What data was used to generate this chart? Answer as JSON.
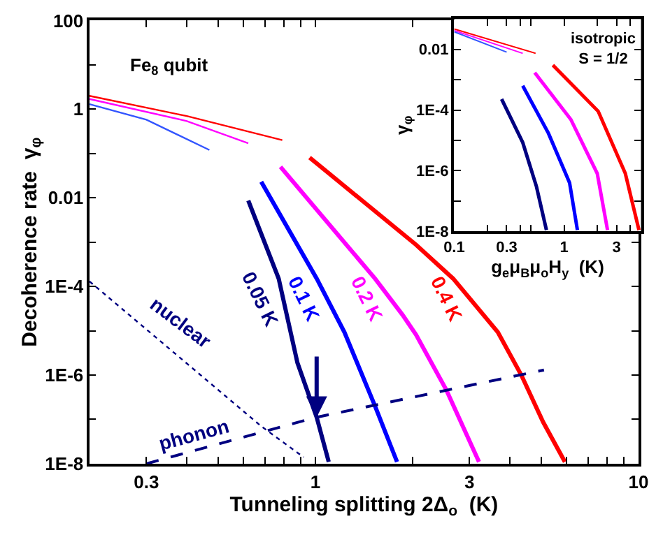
{
  "chart_data": [
    {
      "type": "line",
      "xlabel": "Tunneling splitting 2Δ$_{o}$  (K)",
      "ylabel": "Decoherence rate  γ$_{φ}$",
      "log": "xy",
      "xlim": [
        0.2,
        10
      ],
      "ylim": [
        1e-08,
        100
      ],
      "xticks": [
        0.3,
        {
          "value": 0.4,
          "label": null
        },
        {
          "value": 0.5,
          "label": null
        },
        {
          "value": 0.6,
          "label": null
        },
        {
          "value": 0.7,
          "label": null
        },
        {
          "value": 0.8,
          "label": null
        },
        {
          "value": 0.9,
          "label": null
        },
        1,
        {
          "value": 2,
          "label": null
        },
        3,
        {
          "value": 4,
          "label": null
        },
        {
          "value": 5,
          "label": null
        },
        {
          "value": 6,
          "label": null
        },
        {
          "value": 7,
          "label": null
        },
        {
          "value": 8,
          "label": null
        },
        {
          "value": 9,
          "label": null
        },
        10
      ],
      "yticks": [
        {
          "value": 1e-08,
          "label": "1E-8"
        },
        {
          "value": 1e-07,
          "label": null
        },
        {
          "value": 1e-06,
          "label": "1E-6"
        },
        {
          "value": 1e-05,
          "label": null
        },
        {
          "value": 0.0001,
          "label": "1E-4"
        },
        {
          "value": 0.001,
          "label": null
        },
        0.01,
        {
          "value": 0.1,
          "label": null
        },
        1,
        {
          "value": 10,
          "label": null
        },
        100
      ],
      "annotations": [
        "Fe$_{8}$ qubit"
      ],
      "series": [
        {
          "color": "#ff0000",
          "x": [
            0.2,
            0.4,
            0.79
          ],
          "values": [
            2.0,
            0.7,
            0.2
          ]
        },
        {
          "color": "#ff00ff",
          "x": [
            0.2,
            0.4,
            0.62
          ],
          "values": [
            1.7,
            0.54,
            0.17
          ]
        },
        {
          "color": "#3355ff",
          "x": [
            0.2,
            0.3,
            0.47
          ],
          "values": [
            1.3,
            0.58,
            0.12
          ]
        },
        {
          "name": "0.4 K",
          "color": "#ff0000",
          "x": [
            0.96,
            2.05,
            2.67,
            3.67,
            4.34,
            5.07,
            5.92
          ],
          "values": [
            0.081,
            0.00087,
            0.00015,
            9.3e-06,
            1e-06,
            8.7e-08,
            1.1e-08
          ]
        },
        {
          "name": "0.2 K",
          "color": "#ff00ff",
          "x": [
            0.78,
            1.53,
            1.86,
            2.05,
            2.54,
            3.21
          ],
          "values": [
            0.05,
            0.00015,
            2.3e-05,
            8.1e-06,
            4.7e-07,
            1.1e-08
          ]
        },
        {
          "name": "0.1 K",
          "color": "#0000ff",
          "x": [
            0.68,
            1.01,
            1.23,
            1.53,
            1.79
          ],
          "values": [
            0.023,
            0.00015,
            9.3e-06,
            2e-07,
            1.1e-08
          ]
        },
        {
          "name": "0.05 K",
          "color": "#000080",
          "x": [
            0.62,
            0.77,
            0.88,
            1.01,
            1.1
          ],
          "values": [
            0.0087,
            0.00015,
            1.9e-06,
            1.1e-07,
            1.1e-08
          ]
        },
        {
          "name": "nuclear",
          "color": "#000080",
          "line_style": "dotted",
          "x": [
            0.2,
            0.68,
            0.92
          ],
          "values": [
            0.00013,
            7e-08,
            1.4e-08
          ]
        },
        {
          "name": "phonon",
          "color": "#000080",
          "line_style": "dashed",
          "x": [
            0.3,
            1.0,
            5.1
          ],
          "values": [
            1e-08,
            1.1e-07,
            1.3e-06
          ]
        }
      ]
    },
    {
      "type": "line",
      "xlabel": "g$_{e}$μ$_{B}$μ$_{o}$H$_{y}$  (K)",
      "ylabel": "γ$_{φ}$",
      "log": "xy",
      "xlim": [
        0.1,
        5
      ],
      "ylim": [
        1e-08,
        0.1
      ],
      "xticks": [
        0.1,
        {
          "value": 0.2,
          "label": null
        },
        0.3,
        {
          "value": 0.4,
          "label": null
        },
        {
          "value": 0.5,
          "label": null
        },
        1,
        {
          "value": 2,
          "label": null
        },
        3,
        {
          "value": 4,
          "label": null
        }
      ],
      "yticks": [
        {
          "value": 1e-08,
          "label": "1E-8"
        },
        {
          "value": 1e-07,
          "label": null
        },
        {
          "value": 1e-06,
          "label": "1E-6"
        },
        {
          "value": 1e-05,
          "label": null
        },
        {
          "value": 0.0001,
          "label": "1E-4"
        },
        {
          "value": 0.001,
          "label": null
        },
        0.01
      ],
      "annotations": [
        "isotropic\nS = 1/2"
      ],
      "series": [
        {
          "color": "#ff0000",
          "x": [
            0.1,
            0.55
          ],
          "values": [
            0.047,
            0.0074
          ]
        },
        {
          "color": "#ff00ff",
          "x": [
            0.1,
            0.42
          ],
          "values": [
            0.042,
            0.0074
          ]
        },
        {
          "color": "#3355ff",
          "x": [
            0.1,
            0.3
          ],
          "values": [
            0.038,
            0.0081
          ]
        },
        {
          "color": "#ff0000",
          "x": [
            0.79,
            2.04,
            3.6,
            4.79
          ],
          "values": [
            0.003,
            9.1e-05,
            8.1e-07,
            1.1e-08
          ]
        },
        {
          "color": "#ff00ff",
          "x": [
            0.54,
            1.15,
            2.0,
            2.48
          ],
          "values": [
            0.0017,
            4.9e-05,
            8.1e-07,
            1.1e-08
          ]
        },
        {
          "color": "#0000ff",
          "x": [
            0.42,
            0.72,
            1.12,
            1.32
          ],
          "values": [
            0.00063,
            1.7e-05,
            4e-07,
            1.1e-08
          ]
        },
        {
          "color": "#000080",
          "x": [
            0.27,
            0.42,
            0.56,
            0.69
          ],
          "values": [
            0.00023,
            8.5e-06,
            3e-07,
            1.1e-08
          ]
        }
      ]
    }
  ]
}
